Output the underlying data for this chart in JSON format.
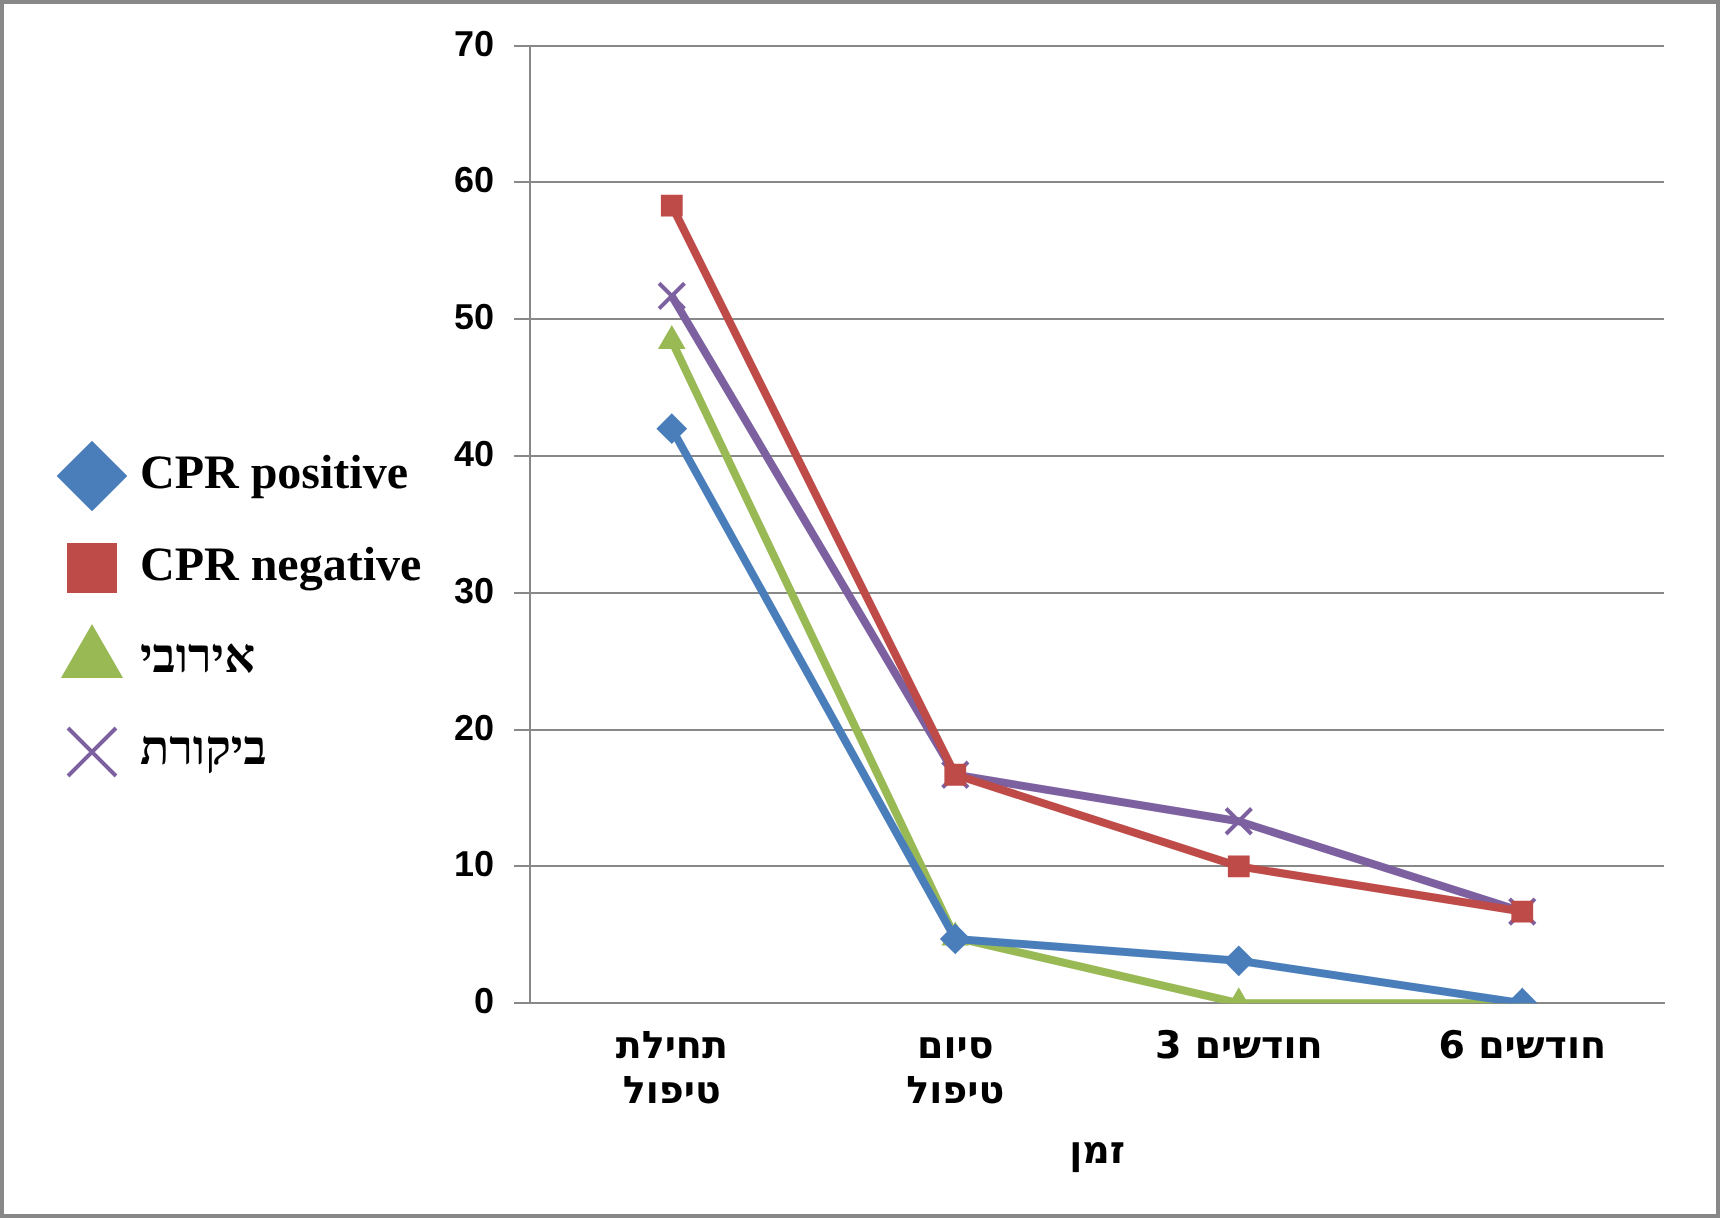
{
  "chart_data": {
    "type": "line",
    "xlabel": "זמן",
    "categories": [
      "תחילת\nטיפול",
      "סיום\nטיפול",
      "3 חודשים",
      "6 חודשים"
    ],
    "series": [
      {
        "name": "CPR positive",
        "color": "#4a7ebb",
        "marker": "diamond",
        "values": [
          42,
          4.7,
          3.1,
          0
        ]
      },
      {
        "name": "CPR negative",
        "color": "#be4b48",
        "marker": "square",
        "values": [
          58.3,
          16.7,
          10,
          6.7
        ]
      },
      {
        "name": "אירובי",
        "color": "#98b954",
        "marker": "triangle",
        "values": [
          48.4,
          4.8,
          0,
          0
        ]
      },
      {
        "name": "ביקורת",
        "color": "#7d60a0",
        "marker": "cross",
        "values": [
          51.7,
          16.7,
          13.3,
          6.7
        ]
      }
    ],
    "ylim": [
      0,
      70
    ],
    "yticks": [
      0,
      10,
      20,
      30,
      40,
      50,
      60,
      70
    ],
    "grid": "y",
    "legend": "left",
    "line_style": "solid"
  }
}
